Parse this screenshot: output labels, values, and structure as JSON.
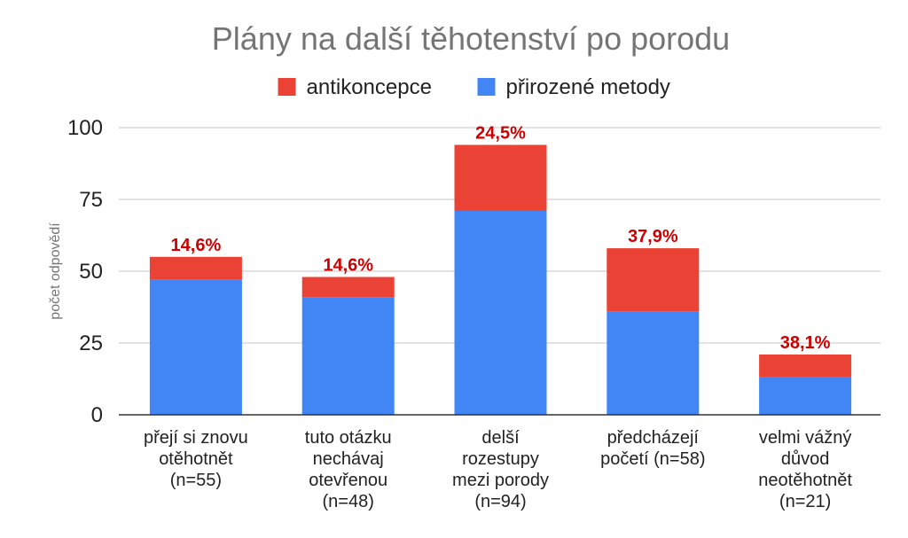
{
  "chart_data": {
    "type": "bar",
    "stacked": true,
    "title": "Plány na další těhotenství po porodu",
    "xlabel": "",
    "ylabel": "počet odpovědí",
    "ylim": [
      0,
      100
    ],
    "yticks": [
      0,
      25,
      50,
      75,
      100
    ],
    "grid": true,
    "legend_position": "top",
    "categories": [
      [
        "přejí si znovu",
        "otěhotnět",
        "(n=55)"
      ],
      [
        "tuto otázku",
        "nechávaj",
        "otevřenou",
        "(n=48)"
      ],
      [
        "delší",
        "rozestupy",
        "mezi porody",
        "(n=94)"
      ],
      [
        "předcházejí",
        "početí (n=58)"
      ],
      [
        "velmi vážný",
        "důvod",
        "neotěhotnět",
        "(n=21)"
      ]
    ],
    "series": [
      {
        "name": "přirozené metody",
        "color": "#4285F4",
        "values": [
          47,
          41,
          71,
          36,
          13
        ]
      },
      {
        "name": "antikoncepce",
        "color": "#EA4335",
        "values": [
          8,
          7,
          23,
          22,
          8
        ]
      }
    ],
    "legend_order": [
      1,
      0
    ],
    "data_labels": [
      "14,6%",
      "14,6%",
      "24,5%",
      "37,9%",
      "38,1%"
    ],
    "data_label_color": "#CC0000",
    "gridline_color": "#D9D9D9",
    "axis_color": "#333333"
  }
}
